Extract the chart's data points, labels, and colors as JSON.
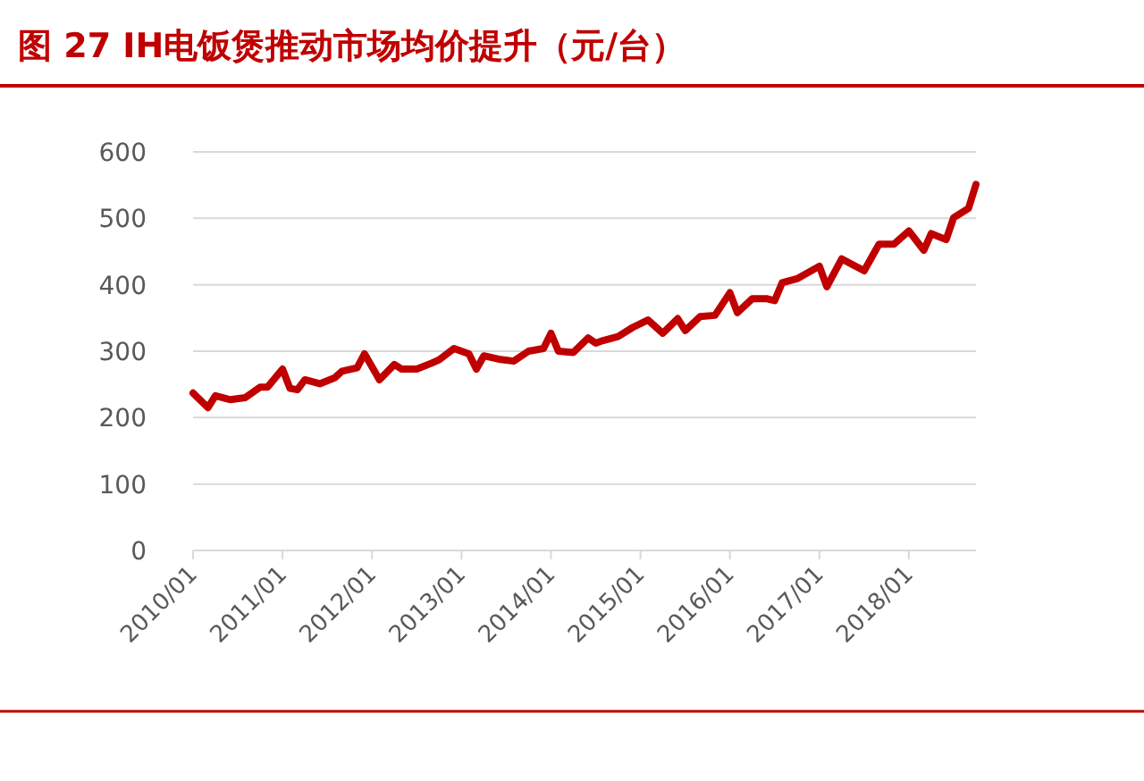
{
  "chart_data": {
    "type": "line",
    "title": "图 27   IH电饭煲推动市场均价提升（元/台）",
    "x": [
      "2010-01",
      "2010-03",
      "2010-04",
      "2010-06",
      "2010-08",
      "2010-10",
      "2010-11",
      "2011-01",
      "2011-02",
      "2011-03",
      "2011-04",
      "2011-06",
      "2011-08",
      "2011-09",
      "2011-11",
      "2011-12",
      "2012-02",
      "2012-04",
      "2012-05",
      "2012-07",
      "2012-09",
      "2012-10",
      "2012-12",
      "2013-02",
      "2013-03",
      "2013-04",
      "2013-06",
      "2013-08",
      "2013-10",
      "2013-12",
      "2014-01",
      "2014-02",
      "2014-04",
      "2014-06",
      "2014-07",
      "2014-08",
      "2014-10",
      "2014-12",
      "2015-02",
      "2015-04",
      "2015-06",
      "2015-07",
      "2015-09",
      "2015-11",
      "2016-01",
      "2016-02",
      "2016-04",
      "2016-06",
      "2016-07",
      "2016-08",
      "2016-10",
      "2017-01",
      "2017-02",
      "2017-04",
      "2017-07",
      "2017-09",
      "2017-11",
      "2018-01",
      "2018-03",
      "2018-04",
      "2018-06",
      "2018-07",
      "2018-09",
      "2018-10"
    ],
    "series": [
      {
        "color": "#c00000",
        "values": [
          237,
          215,
          233,
          227,
          230,
          246,
          246,
          273,
          244,
          242,
          257,
          251,
          260,
          270,
          275,
          296,
          257,
          280,
          273,
          273,
          282,
          287,
          304,
          296,
          273,
          293,
          288,
          285,
          300,
          304,
          327,
          300,
          298,
          320,
          312,
          316,
          322,
          336,
          347,
          327,
          349,
          331,
          352,
          354,
          388,
          358,
          379,
          379,
          376,
          403,
          409,
          428,
          397,
          439,
          421,
          461,
          461,
          481,
          452,
          477,
          468,
          501,
          515,
          551
        ]
      }
    ],
    "xlim": [
      "2010-01",
      "2018-10"
    ],
    "xticks": [
      {
        "value": "2010-01",
        "label": "2010/01"
      },
      {
        "value": "2011-01",
        "label": "2011/01"
      },
      {
        "value": "2012-01",
        "label": "2012/01"
      },
      {
        "value": "2013-01",
        "label": "2013/01"
      },
      {
        "value": "2014-01",
        "label": "2014/01"
      },
      {
        "value": "2015-01",
        "label": "2015/01"
      },
      {
        "value": "2016-01",
        "label": "2016/01"
      },
      {
        "value": "2017-01",
        "label": "2017/01"
      },
      {
        "value": "2018-01",
        "label": "2018/01"
      }
    ],
    "ylim": [
      0,
      600
    ],
    "yticks": [
      0,
      100,
      200,
      300,
      400,
      500,
      600
    ],
    "grid": "y",
    "marker": "none",
    "line_style": "solid"
  }
}
